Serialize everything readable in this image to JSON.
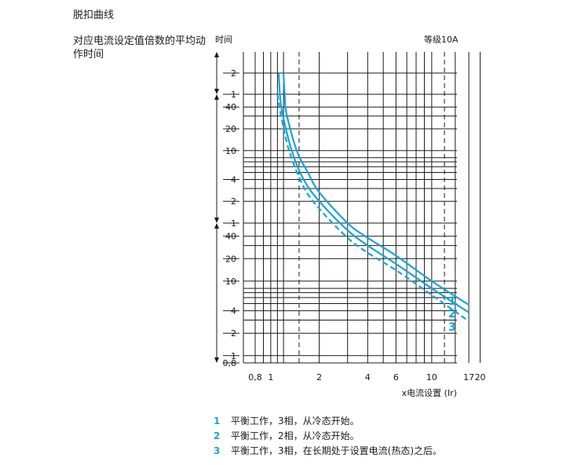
{
  "section_title": "脱扣曲线",
  "side_description": "对应电流设定值倍数的平均动作时间",
  "time_label": "时间",
  "rating_label": "等级10A",
  "colors": {
    "curve": "#1aa3d4",
    "grid": "#1a1a1a"
  },
  "chart_data": {
    "type": "line",
    "title": "",
    "xlabel": "x电流设置 (Ir)",
    "ylabel": "时间",
    "x_scale": "log",
    "y_scale": "log",
    "xlim": [
      0.8,
      20
    ],
    "x_ticks": [
      "0,8",
      "1",
      "2",
      "4",
      "6",
      "10",
      "17",
      "20"
    ],
    "y_unit_groups": [
      {
        "range": "hours",
        "ticks": [
          "2",
          "1"
        ]
      },
      {
        "range": "minutes",
        "ticks": [
          "40",
          "20",
          "10",
          "4",
          "2",
          "1"
        ]
      },
      {
        "range": "seconds",
        "ticks": [
          "40",
          "20",
          "10",
          "4",
          "2",
          "1",
          "0,8"
        ]
      }
    ],
    "grid": true,
    "series": [
      {
        "name": "1",
        "style": "solid",
        "points": [
          [
            1.2,
            7200
          ],
          [
            1.22,
            3600
          ],
          [
            1.25,
            1980
          ],
          [
            1.45,
            600
          ],
          [
            1.7,
            300
          ],
          [
            2,
            160
          ],
          [
            3,
            60
          ],
          [
            4,
            38
          ],
          [
            6,
            22
          ],
          [
            10,
            10
          ],
          [
            17,
            4.8
          ]
        ]
      },
      {
        "name": "2",
        "style": "solid",
        "points": [
          [
            1.12,
            7200
          ],
          [
            1.14,
            3600
          ],
          [
            1.18,
            1980
          ],
          [
            1.35,
            600
          ],
          [
            1.6,
            240
          ],
          [
            2,
            120
          ],
          [
            3,
            48
          ],
          [
            4,
            30
          ],
          [
            6,
            17
          ],
          [
            10,
            8
          ],
          [
            17,
            3.8
          ]
        ]
      },
      {
        "name": "3",
        "style": "dashed",
        "points": [
          [
            1.1,
            3600
          ],
          [
            1.15,
            1980
          ],
          [
            1.3,
            600
          ],
          [
            1.6,
            190
          ],
          [
            2,
            95
          ],
          [
            3,
            38
          ],
          [
            4,
            24
          ],
          [
            6,
            14
          ],
          [
            10,
            6.5
          ],
          [
            17,
            2.9
          ]
        ]
      }
    ]
  },
  "legend": [
    {
      "num": "1",
      "text": "平衡工作，3相，从冷态开始。"
    },
    {
      "num": "2",
      "text": "平衡工作，2相，从冷态开始。"
    },
    {
      "num": "3",
      "text": "平衡工作，3相，在长期处于设置电流(热态)之后。"
    }
  ]
}
